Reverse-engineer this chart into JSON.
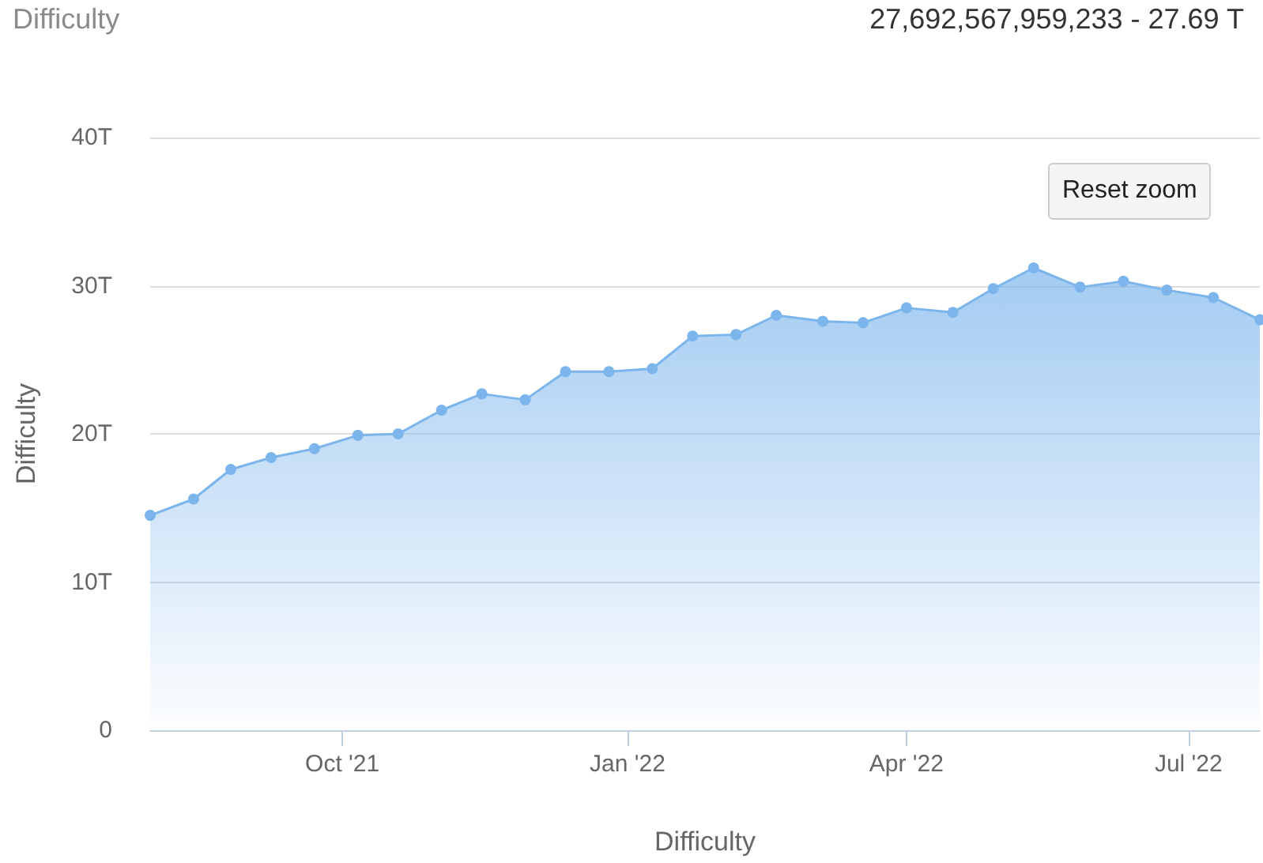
{
  "chart_data": {
    "type": "area",
    "title": "Difficulty",
    "xlabel": "Difficulty",
    "ylabel": "Difficulty",
    "annotations": [
      "27,692,567,959,233 - 27.69 T",
      "Reset zoom"
    ],
    "x": [
      "2021-07-31",
      "2021-08-14",
      "2021-08-26",
      "2021-09-08",
      "2021-09-22",
      "2021-10-06",
      "2021-10-19",
      "2021-11-02",
      "2021-11-15",
      "2021-11-29",
      "2021-12-12",
      "2021-12-26",
      "2022-01-09",
      "2022-01-22",
      "2022-02-05",
      "2022-02-18",
      "2022-03-05",
      "2022-03-18",
      "2022-04-01",
      "2022-04-16",
      "2022-04-29",
      "2022-05-12",
      "2022-05-27",
      "2022-06-10",
      "2022-06-24",
      "2022-07-09",
      "2022-07-24"
    ],
    "series": [
      {
        "color": "#7cb5ec",
        "values": [
          14.5,
          15.6,
          17.6,
          18.4,
          19.0,
          19.9,
          20.0,
          21.6,
          22.7,
          22.3,
          24.2,
          24.2,
          24.4,
          26.6,
          26.7,
          28.0,
          27.6,
          27.5,
          28.5,
          28.2,
          29.8,
          31.2,
          29.9,
          30.3,
          29.7,
          29.2,
          27.7
        ]
      }
    ],
    "xlim": [
      "2021-07-31",
      "2022-07-24"
    ],
    "xticks": [
      {
        "value": "2021-10-01",
        "label": "Oct '21"
      },
      {
        "value": "2022-01-01",
        "label": "Jan '22"
      },
      {
        "value": "2022-04-01",
        "label": "Apr '22"
      },
      {
        "value": "2022-07-01",
        "label": "Jul '22"
      }
    ],
    "ylim": [
      0,
      40
    ],
    "yticks": [
      0,
      {
        "value": 10,
        "label": "10T"
      },
      {
        "value": 20,
        "label": "20T"
      },
      {
        "value": 30,
        "label": "30T"
      },
      {
        "value": 40,
        "label": "40T"
      }
    ],
    "grid": "y",
    "marker": "circle"
  }
}
